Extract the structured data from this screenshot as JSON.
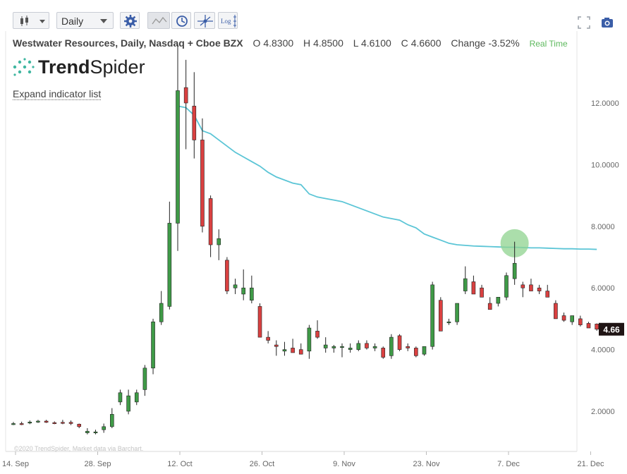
{
  "toolbar": {
    "interval": "Daily",
    "log_label": "Log"
  },
  "symbol": {
    "title": "Westwater Resources, Daily, Nasdaq + Cboe BZX",
    "o_label": "O",
    "o": "4.8300",
    "h_label": "H",
    "h": "4.8500",
    "l_label": "L",
    "l": "4.6100",
    "c_label": "C",
    "c": "4.6600",
    "change_label": "Change",
    "change": "-3.52%",
    "realtime": "Real Time"
  },
  "logo": {
    "bold": "Trend",
    "light": "Spider"
  },
  "expand_label": "Expand indicator list",
  "copyright": "©2020 TrendSpider, Market data via Barchart.",
  "colors": {
    "up": "#3f9a47",
    "down": "#d94040",
    "ma": "#5bc5d6",
    "highlight": "#8fd38f",
    "price_tag": "#1f1414"
  },
  "chart_data": {
    "type": "candlestick",
    "ylim": [
      1.0,
      14.0
    ],
    "y_ticks": [
      "2.0000",
      "4.0000",
      "6.0000",
      "8.0000",
      "10.0000",
      "12.0000"
    ],
    "y_tick_values": [
      2,
      4,
      6,
      8,
      10,
      12
    ],
    "x_tick_labels": [
      "14. Sep",
      "28. Sep",
      "12. Oct",
      "26. Oct",
      "9. Nov",
      "23. Nov",
      "7. Dec",
      "21. Dec"
    ],
    "x_tick_index": [
      0,
      10,
      20,
      30,
      40,
      50,
      60,
      70
    ],
    "last_price": "4.66",
    "candles": [
      [
        0,
        1.6,
        1.65,
        1.55,
        1.6
      ],
      [
        1,
        1.6,
        1.66,
        1.55,
        1.58
      ],
      [
        2,
        1.62,
        1.7,
        1.58,
        1.65
      ],
      [
        3,
        1.66,
        1.72,
        1.62,
        1.68
      ],
      [
        4,
        1.68,
        1.72,
        1.62,
        1.64
      ],
      [
        5,
        1.63,
        1.67,
        1.58,
        1.62
      ],
      [
        6,
        1.64,
        1.72,
        1.58,
        1.63
      ],
      [
        7,
        1.64,
        1.7,
        1.55,
        1.6
      ],
      [
        8,
        1.58,
        1.6,
        1.45,
        1.5
      ],
      [
        9,
        1.3,
        1.45,
        1.25,
        1.35
      ],
      [
        10,
        1.3,
        1.4,
        1.25,
        1.33
      ],
      [
        11,
        1.4,
        1.6,
        1.3,
        1.5
      ],
      [
        12,
        1.5,
        2.1,
        1.45,
        1.9
      ],
      [
        13,
        2.3,
        2.7,
        2.2,
        2.6
      ],
      [
        14,
        2.0,
        2.7,
        1.9,
        2.5
      ],
      [
        15,
        2.3,
        2.7,
        2.2,
        2.6
      ],
      [
        16,
        2.7,
        3.5,
        2.5,
        3.4
      ],
      [
        17,
        3.4,
        5.0,
        3.2,
        4.9
      ],
      [
        18,
        4.9,
        5.9,
        4.8,
        5.5
      ],
      [
        19,
        5.4,
        8.8,
        5.3,
        8.1
      ],
      [
        20,
        8.1,
        13.9,
        7.2,
        12.4
      ],
      [
        21,
        12.5,
        13.4,
        10.5,
        12.0
      ],
      [
        22,
        11.9,
        13.0,
        10.2,
        10.8
      ],
      [
        23,
        10.8,
        11.5,
        7.8,
        8.0
      ],
      [
        24,
        8.9,
        9.0,
        7.0,
        7.4
      ],
      [
        25,
        7.4,
        7.9,
        6.9,
        7.6
      ],
      [
        26,
        6.9,
        7.0,
        5.8,
        5.9
      ],
      [
        27,
        6.0,
        6.3,
        5.8,
        6.1
      ],
      [
        28,
        5.8,
        6.6,
        5.6,
        6.0
      ],
      [
        29,
        5.6,
        6.4,
        5.5,
        6.0
      ],
      [
        30,
        5.4,
        5.5,
        4.5,
        4.4
      ],
      [
        31,
        4.4,
        4.6,
        4.2,
        4.3
      ],
      [
        32,
        4.15,
        4.3,
        3.8,
        4.1
      ],
      [
        33,
        3.95,
        4.25,
        3.8,
        4.0
      ],
      [
        34,
        4.05,
        4.35,
        3.9,
        3.9
      ],
      [
        35,
        4.0,
        4.2,
        3.85,
        3.85
      ],
      [
        36,
        3.95,
        4.8,
        3.7,
        4.7
      ],
      [
        37,
        4.6,
        4.95,
        4.35,
        4.4
      ],
      [
        38,
        4.05,
        4.4,
        3.9,
        4.15
      ],
      [
        39,
        4.05,
        4.15,
        3.9,
        4.1
      ],
      [
        40,
        4.1,
        4.2,
        3.75,
        4.1
      ],
      [
        41,
        4.0,
        4.2,
        3.9,
        4.05
      ],
      [
        42,
        4.0,
        4.3,
        3.95,
        4.2
      ],
      [
        43,
        4.2,
        4.3,
        4.0,
        4.05
      ],
      [
        44,
        4.05,
        4.2,
        3.95,
        4.1
      ],
      [
        45,
        4.05,
        4.1,
        3.7,
        3.75
      ],
      [
        46,
        3.8,
        4.5,
        3.7,
        4.4
      ],
      [
        47,
        4.45,
        4.5,
        3.95,
        4.0
      ],
      [
        48,
        4.1,
        4.2,
        3.95,
        4.05
      ],
      [
        49,
        4.05,
        4.1,
        3.75,
        3.8
      ],
      [
        50,
        3.85,
        4.1,
        3.8,
        4.1
      ],
      [
        51,
        4.1,
        6.2,
        4.0,
        6.1
      ],
      [
        52,
        5.6,
        5.7,
        4.7,
        4.6
      ],
      [
        53,
        4.9,
        5.0,
        4.8,
        4.9
      ],
      [
        54,
        4.9,
        5.5,
        4.8,
        5.5
      ],
      [
        55,
        5.9,
        6.7,
        5.8,
        6.3
      ],
      [
        56,
        6.2,
        6.4,
        5.8,
        5.8
      ],
      [
        57,
        6.0,
        6.1,
        5.7,
        5.7
      ],
      [
        58,
        5.5,
        5.7,
        5.3,
        5.3
      ],
      [
        59,
        5.5,
        5.7,
        5.4,
        5.7
      ],
      [
        60,
        5.7,
        6.5,
        5.6,
        6.4
      ],
      [
        61,
        6.3,
        7.5,
        6.1,
        6.8
      ],
      [
        62,
        6.1,
        6.2,
        5.7,
        6.0
      ],
      [
        63,
        6.1,
        6.3,
        5.9,
        5.9
      ],
      [
        64,
        6.0,
        6.1,
        5.8,
        5.9
      ],
      [
        65,
        5.9,
        6.1,
        5.7,
        5.7
      ],
      [
        66,
        5.5,
        5.6,
        5.0,
        5.0
      ],
      [
        67,
        5.1,
        5.2,
        4.9,
        4.95
      ],
      [
        68,
        4.9,
        5.1,
        4.8,
        5.1
      ],
      [
        69,
        5.0,
        5.1,
        4.75,
        4.8
      ],
      [
        70,
        4.85,
        4.9,
        4.7,
        4.7
      ],
      [
        71,
        4.83,
        4.85,
        4.61,
        4.66
      ]
    ],
    "moving_average": [
      [
        20,
        11.9
      ],
      [
        21,
        11.85
      ],
      [
        22,
        11.6
      ],
      [
        23,
        11.1
      ],
      [
        24,
        11.0
      ],
      [
        25,
        10.8
      ],
      [
        26,
        10.6
      ],
      [
        27,
        10.4
      ],
      [
        28,
        10.25
      ],
      [
        29,
        10.1
      ],
      [
        30,
        9.95
      ],
      [
        31,
        9.75
      ],
      [
        32,
        9.6
      ],
      [
        33,
        9.5
      ],
      [
        34,
        9.4
      ],
      [
        35,
        9.35
      ],
      [
        36,
        9.05
      ],
      [
        37,
        8.95
      ],
      [
        38,
        8.9
      ],
      [
        39,
        8.85
      ],
      [
        40,
        8.8
      ],
      [
        41,
        8.7
      ],
      [
        42,
        8.6
      ],
      [
        43,
        8.5
      ],
      [
        44,
        8.4
      ],
      [
        45,
        8.3
      ],
      [
        46,
        8.25
      ],
      [
        47,
        8.2
      ],
      [
        48,
        8.05
      ],
      [
        49,
        7.95
      ],
      [
        50,
        7.75
      ],
      [
        51,
        7.65
      ],
      [
        52,
        7.55
      ],
      [
        53,
        7.45
      ],
      [
        54,
        7.4
      ],
      [
        55,
        7.38
      ],
      [
        56,
        7.36
      ],
      [
        57,
        7.35
      ],
      [
        58,
        7.34
      ],
      [
        59,
        7.33
      ],
      [
        60,
        7.32
      ],
      [
        61,
        7.32
      ],
      [
        62,
        7.31
      ],
      [
        63,
        7.3
      ],
      [
        64,
        7.3
      ],
      [
        65,
        7.29
      ],
      [
        66,
        7.28
      ],
      [
        67,
        7.27
      ],
      [
        68,
        7.27
      ],
      [
        69,
        7.26
      ],
      [
        70,
        7.26
      ],
      [
        71,
        7.25
      ]
    ],
    "highlight_index": 61,
    "highlight_value": 7.45
  }
}
